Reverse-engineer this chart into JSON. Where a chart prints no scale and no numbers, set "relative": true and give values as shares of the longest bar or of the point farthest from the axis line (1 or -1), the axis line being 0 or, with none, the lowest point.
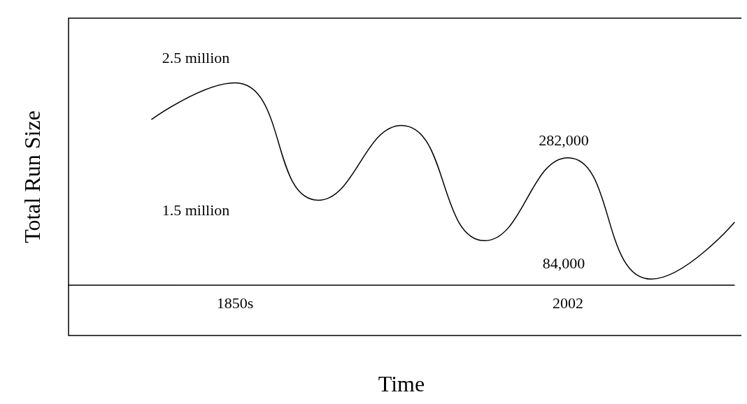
{
  "chart_data": {
    "type": "line",
    "relative": true,
    "xlabel": "Time",
    "ylabel": "Total Run Size",
    "categories": [
      null,
      null,
      "1850s",
      null,
      null,
      null,
      "2002",
      null,
      null
    ],
    "values": [
      null,
      0.82,
      1.0,
      0.42,
      0.79,
      0.22,
      0.63,
      0.03,
      0.31
    ],
    "color": "#000000",
    "marker": "none",
    "grid": false,
    "annotations": [
      "2.5 million",
      "1.5 million",
      "282,000",
      "84,000"
    ]
  }
}
